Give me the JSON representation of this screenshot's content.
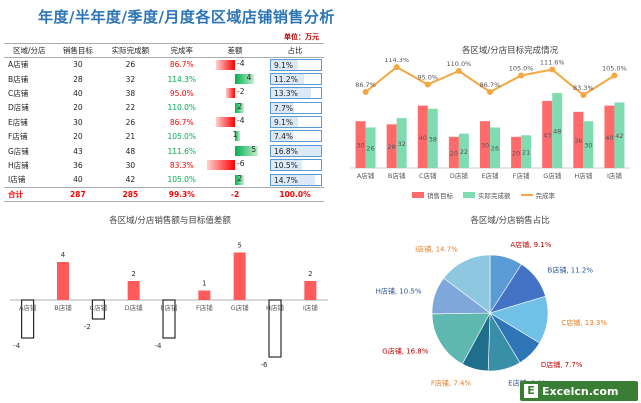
{
  "title": "年度/半年度/季度/月度各区域店铺销售分析",
  "unit": "单位：万元",
  "table": {
    "headers": [
      "区域/分店",
      "销售目标",
      "实际完成额",
      "完成率",
      "差额",
      "占比"
    ],
    "rows": [
      {
        "name": "A店铺",
        "target": "30",
        "actual": "26",
        "rate": "86.7%",
        "diff": "-4",
        "share": "9.1%"
      },
      {
        "name": "B店铺",
        "target": "28",
        "actual": "32",
        "rate": "114.3%",
        "diff": "4",
        "share": "11.2%"
      },
      {
        "name": "C店铺",
        "target": "40",
        "actual": "38",
        "rate": "95.0%",
        "diff": "-2",
        "share": "13.3%"
      },
      {
        "name": "D店铺",
        "target": "20",
        "actual": "22",
        "rate": "110.0%",
        "diff": "2",
        "share": "7.7%"
      },
      {
        "name": "E店铺",
        "target": "30",
        "actual": "26",
        "rate": "86.7%",
        "diff": "-4",
        "share": "9.1%"
      },
      {
        "name": "F店铺",
        "target": "20",
        "actual": "21",
        "rate": "105.0%",
        "diff": "1",
        "share": "7.4%"
      },
      {
        "name": "G店铺",
        "target": "43",
        "actual": "48",
        "rate": "111.6%",
        "diff": "5",
        "share": "16.8%"
      },
      {
        "name": "H店铺",
        "target": "36",
        "actual": "30",
        "rate": "83.3%",
        "diff": "-6",
        "share": "10.5%"
      },
      {
        "name": "I店铺",
        "target": "40",
        "actual": "42",
        "rate": "105.0%",
        "diff": "2",
        "share": "14.7%"
      }
    ],
    "total": {
      "name": "合计",
      "target": "287",
      "actual": "285",
      "rate": "99.3%",
      "diff": "-2",
      "share": "100.0%"
    }
  },
  "watermark": "Excelcn.com",
  "colors": {
    "target": "#ff6b6b",
    "actual": "#7fdcb0",
    "rate": "#f4a742",
    "title": "#2e75b6",
    "diff_bar": "#ff5b5b"
  },
  "chart_data": [
    {
      "type": "bar",
      "title": "各区域/分店目标完成情况",
      "categories": [
        "A店铺",
        "B店铺",
        "C店铺",
        "D店铺",
        "E店铺",
        "F店铺",
        "G店铺",
        "H店铺",
        "I店铺"
      ],
      "series": [
        {
          "name": "销售目标",
          "values": [
            30,
            28,
            40,
            20,
            30,
            20,
            43,
            36,
            40
          ]
        },
        {
          "name": "实际完成额",
          "values": [
            26,
            32,
            38,
            22,
            26,
            21,
            48,
            30,
            42
          ]
        },
        {
          "name": "完成率",
          "type": "line",
          "values": [
            86.7,
            114.3,
            95.0,
            110.0,
            86.7,
            105.0,
            111.6,
            83.3,
            105.0
          ],
          "labels": [
            "86.7%",
            "114.3%",
            "95.0%",
            "110.0%",
            "86.7%",
            "105.0%",
            "111.6%",
            "83.3%",
            "105.0%"
          ]
        }
      ],
      "legend": "bottom"
    },
    {
      "type": "bar",
      "title": "各区域/分店销售额与目标值差额",
      "categories": [
        "A店铺",
        "B店铺",
        "C店铺",
        "D店铺",
        "E店铺",
        "F店铺",
        "G店铺",
        "H店铺",
        "I店铺"
      ],
      "values": [
        -4,
        4,
        -2,
        2,
        -4,
        1,
        5,
        -6,
        2
      ]
    },
    {
      "type": "pie",
      "title": "各区域/分店销售占比",
      "labels": [
        "A店铺",
        "B店铺",
        "C店铺",
        "D店铺",
        "E店铺",
        "F店铺",
        "G店铺",
        "H店铺",
        "I店铺"
      ],
      "values": [
        9.1,
        11.2,
        13.3,
        7.7,
        9.1,
        7.4,
        16.8,
        10.5,
        14.7
      ],
      "slice_labels": [
        "A店铺, 9.1%",
        "B店铺, 11.2%",
        "C店铺, 13.3%",
        "D店铺, 7.7%",
        "E店铺, 9.1%",
        "F店铺, 7.4%",
        "G店铺, 16.8%",
        "H店铺, 10.5%",
        "I店铺, 14.7%"
      ],
      "colors": [
        "#5b9bd5",
        "#4472c4",
        "#70c0e8",
        "#2e75b6",
        "#3a8fa8",
        "#1f6e8c",
        "#5fb8b0",
        "#7fa7d9",
        "#8dc7e0"
      ],
      "label_colors": [
        "#c00000",
        "#2e5597",
        "#e67e22",
        "#c00000",
        "#2e5597",
        "#e67e22",
        "#c00000",
        "#2e5597",
        "#e67e22"
      ]
    }
  ]
}
